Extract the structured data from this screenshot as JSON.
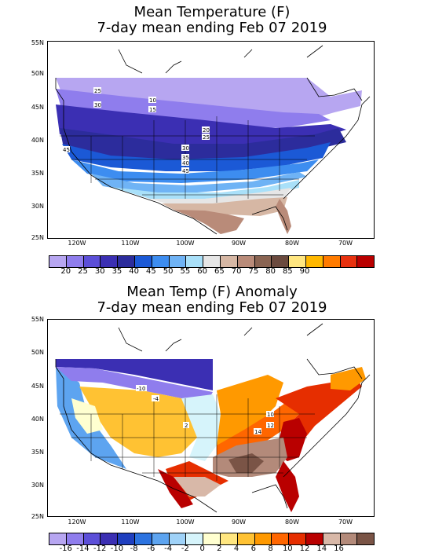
{
  "top": {
    "title_line1": "Mean Temperature (F)",
    "title_line2": "7-day mean ending Feb 07 2019",
    "lat_labels": [
      "55N",
      "50N",
      "45N",
      "40N",
      "35N",
      "30N",
      "25N"
    ],
    "lon_labels": [
      "120W",
      "110W",
      "100W",
      "90W",
      "80W",
      "70W"
    ],
    "colorbar_labels": [
      "20",
      "25",
      "30",
      "35",
      "40",
      "45",
      "50",
      "55",
      "60",
      "65",
      "70",
      "75",
      "80",
      "85",
      "90"
    ],
    "colorbar_colors": [
      "#b7a6f1",
      "#8f7ded",
      "#5c4fd8",
      "#3b2fb3",
      "#2c2c9c",
      "#1b59d6",
      "#3d8df0",
      "#6fb3f5",
      "#a9e0f9",
      "#e6e6e6",
      "#d6b7a4",
      "#b98b79",
      "#8a6452",
      "#6b4a3e",
      "#ffe680",
      "#ffb800",
      "#ff7b00",
      "#e8320f",
      "#b90000"
    ],
    "contour_labels": [
      "25",
      "30",
      "10",
      "15",
      "20",
      "25",
      "30",
      "35",
      "40",
      "45",
      "45"
    ]
  },
  "bottom": {
    "title_line1": "Mean Temp (F) Anomaly",
    "title_line2": "7-day mean ending Feb 07 2019",
    "lat_labels": [
      "55N",
      "50N",
      "45N",
      "40N",
      "35N",
      "30N",
      "25N"
    ],
    "lon_labels": [
      "120W",
      "110W",
      "100W",
      "90W",
      "80W",
      "70W"
    ],
    "colorbar_labels": [
      "-16",
      "-14",
      "-12",
      "-10",
      "-8",
      "-6",
      "-4",
      "-2",
      "0",
      "2",
      "4",
      "6",
      "8",
      "10",
      "12",
      "14",
      "16"
    ],
    "colorbar_colors": [
      "#b7a6f1",
      "#8f7ded",
      "#5c4fd8",
      "#3b2fb3",
      "#1f3fbf",
      "#2c73e0",
      "#5da4f0",
      "#9fd2f8",
      "#d6f4fb",
      "#ffffd0",
      "#ffe680",
      "#ffc233",
      "#ff9900",
      "#ff6600",
      "#e62e00",
      "#b90000",
      "#d8b8a8",
      "#b38a7a",
      "#7a5446"
    ],
    "contour_labels": [
      "-10",
      "-4",
      "10",
      "12",
      "14",
      "2"
    ]
  }
}
